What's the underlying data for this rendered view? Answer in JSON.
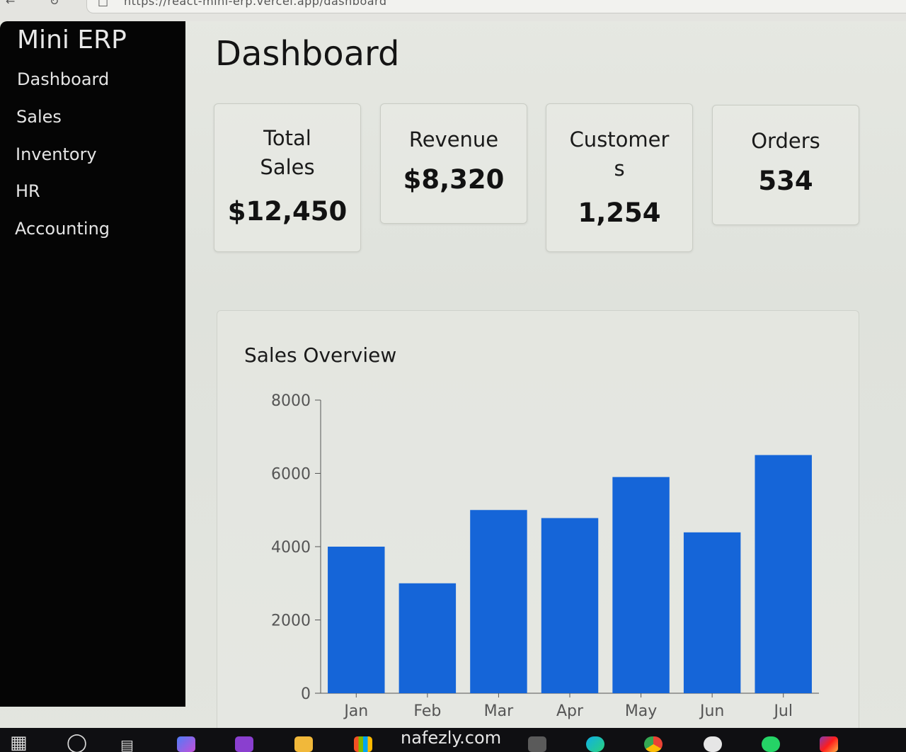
{
  "browser": {
    "url": "https://react-mini-erp.vercel.app/dashboard"
  },
  "sidebar": {
    "brand": "Mini ERP",
    "items": [
      {
        "label": "Dashboard"
      },
      {
        "label": "Sales"
      },
      {
        "label": "Inventory"
      },
      {
        "label": "HR"
      },
      {
        "label": "Accounting"
      }
    ]
  },
  "main": {
    "title": "Dashboard",
    "cards": [
      {
        "label_lines": [
          "Total",
          "Sales"
        ],
        "value": "$12,450"
      },
      {
        "label_lines": [
          "Revenue"
        ],
        "value": "$8,320"
      },
      {
        "label_lines": [
          "Customer",
          "s"
        ],
        "value": "1,254"
      },
      {
        "label_lines": [
          "Orders"
        ],
        "value": "534"
      }
    ],
    "chart_panel_title": "Sales Overview"
  },
  "chart_data": {
    "type": "bar",
    "title": "Sales Overview",
    "categories": [
      "Jan",
      "Feb",
      "Mar",
      "Apr",
      "May",
      "Jun",
      "Jul"
    ],
    "values": [
      4000,
      3000,
      5000,
      4780,
      5900,
      4390,
      6500
    ],
    "ylim": [
      0,
      8000
    ],
    "yticks": [
      0,
      2000,
      4000,
      6000,
      8000
    ],
    "xlabel": "",
    "ylabel": "",
    "grid": false,
    "bar_color": "#1565d8"
  },
  "taskbar": {
    "watermark": "nafezly.com"
  },
  "colors": {
    "sidebar_bg": "#050505",
    "accent": "#1565d8"
  }
}
